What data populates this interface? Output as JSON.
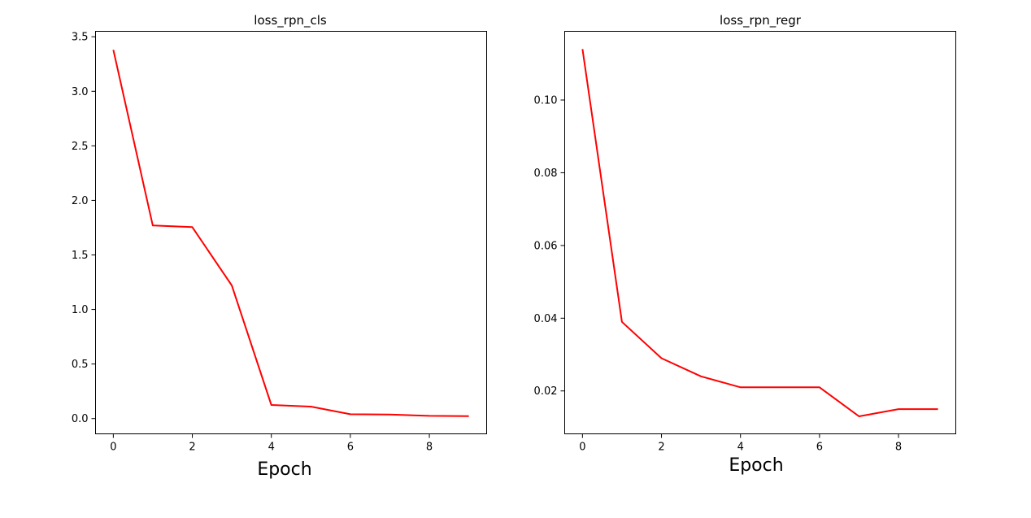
{
  "chart_data": [
    {
      "type": "line",
      "title": "loss_rpn_cls",
      "xlabel": "Epoch",
      "ylabel": "",
      "x": [
        0,
        1,
        2,
        3,
        4,
        5,
        6,
        7,
        8,
        9
      ],
      "series": [
        {
          "name": "loss_rpn_cls",
          "color": "#ff0000",
          "values": [
            3.38,
            1.77,
            1.755,
            1.22,
            0.125,
            0.11,
            0.04,
            0.037,
            0.025,
            0.022
          ]
        }
      ],
      "xlim": [
        -0.45,
        9.45
      ],
      "ylim": [
        -0.14,
        3.55
      ],
      "xticks": [
        0,
        2,
        4,
        6,
        8
      ],
      "yticks": [
        0.0,
        0.5,
        1.0,
        1.5,
        2.0,
        2.5,
        3.0,
        3.5
      ],
      "ytick_labels": [
        "0.0",
        "0.5",
        "1.0",
        "1.5",
        "2.0",
        "2.5",
        "3.0",
        "3.5"
      ]
    },
    {
      "type": "line",
      "title": "loss_rpn_regr",
      "xlabel": "Epoch",
      "ylabel": "",
      "x": [
        0,
        1,
        2,
        3,
        4,
        5,
        6,
        7,
        8,
        9
      ],
      "series": [
        {
          "name": "loss_rpn_regr",
          "color": "#ff0000",
          "values": [
            0.114,
            0.039,
            0.029,
            0.024,
            0.021,
            0.021,
            0.021,
            0.013,
            0.015,
            0.015
          ]
        }
      ],
      "xlim": [
        -0.45,
        9.45
      ],
      "ylim": [
        0.0082,
        0.1189
      ],
      "xticks": [
        0,
        2,
        4,
        6,
        8
      ],
      "yticks": [
        0.02,
        0.04,
        0.06,
        0.08,
        0.1
      ],
      "ytick_labels": [
        "0.02",
        "0.04",
        "0.06",
        "0.08",
        "0.10"
      ]
    }
  ]
}
